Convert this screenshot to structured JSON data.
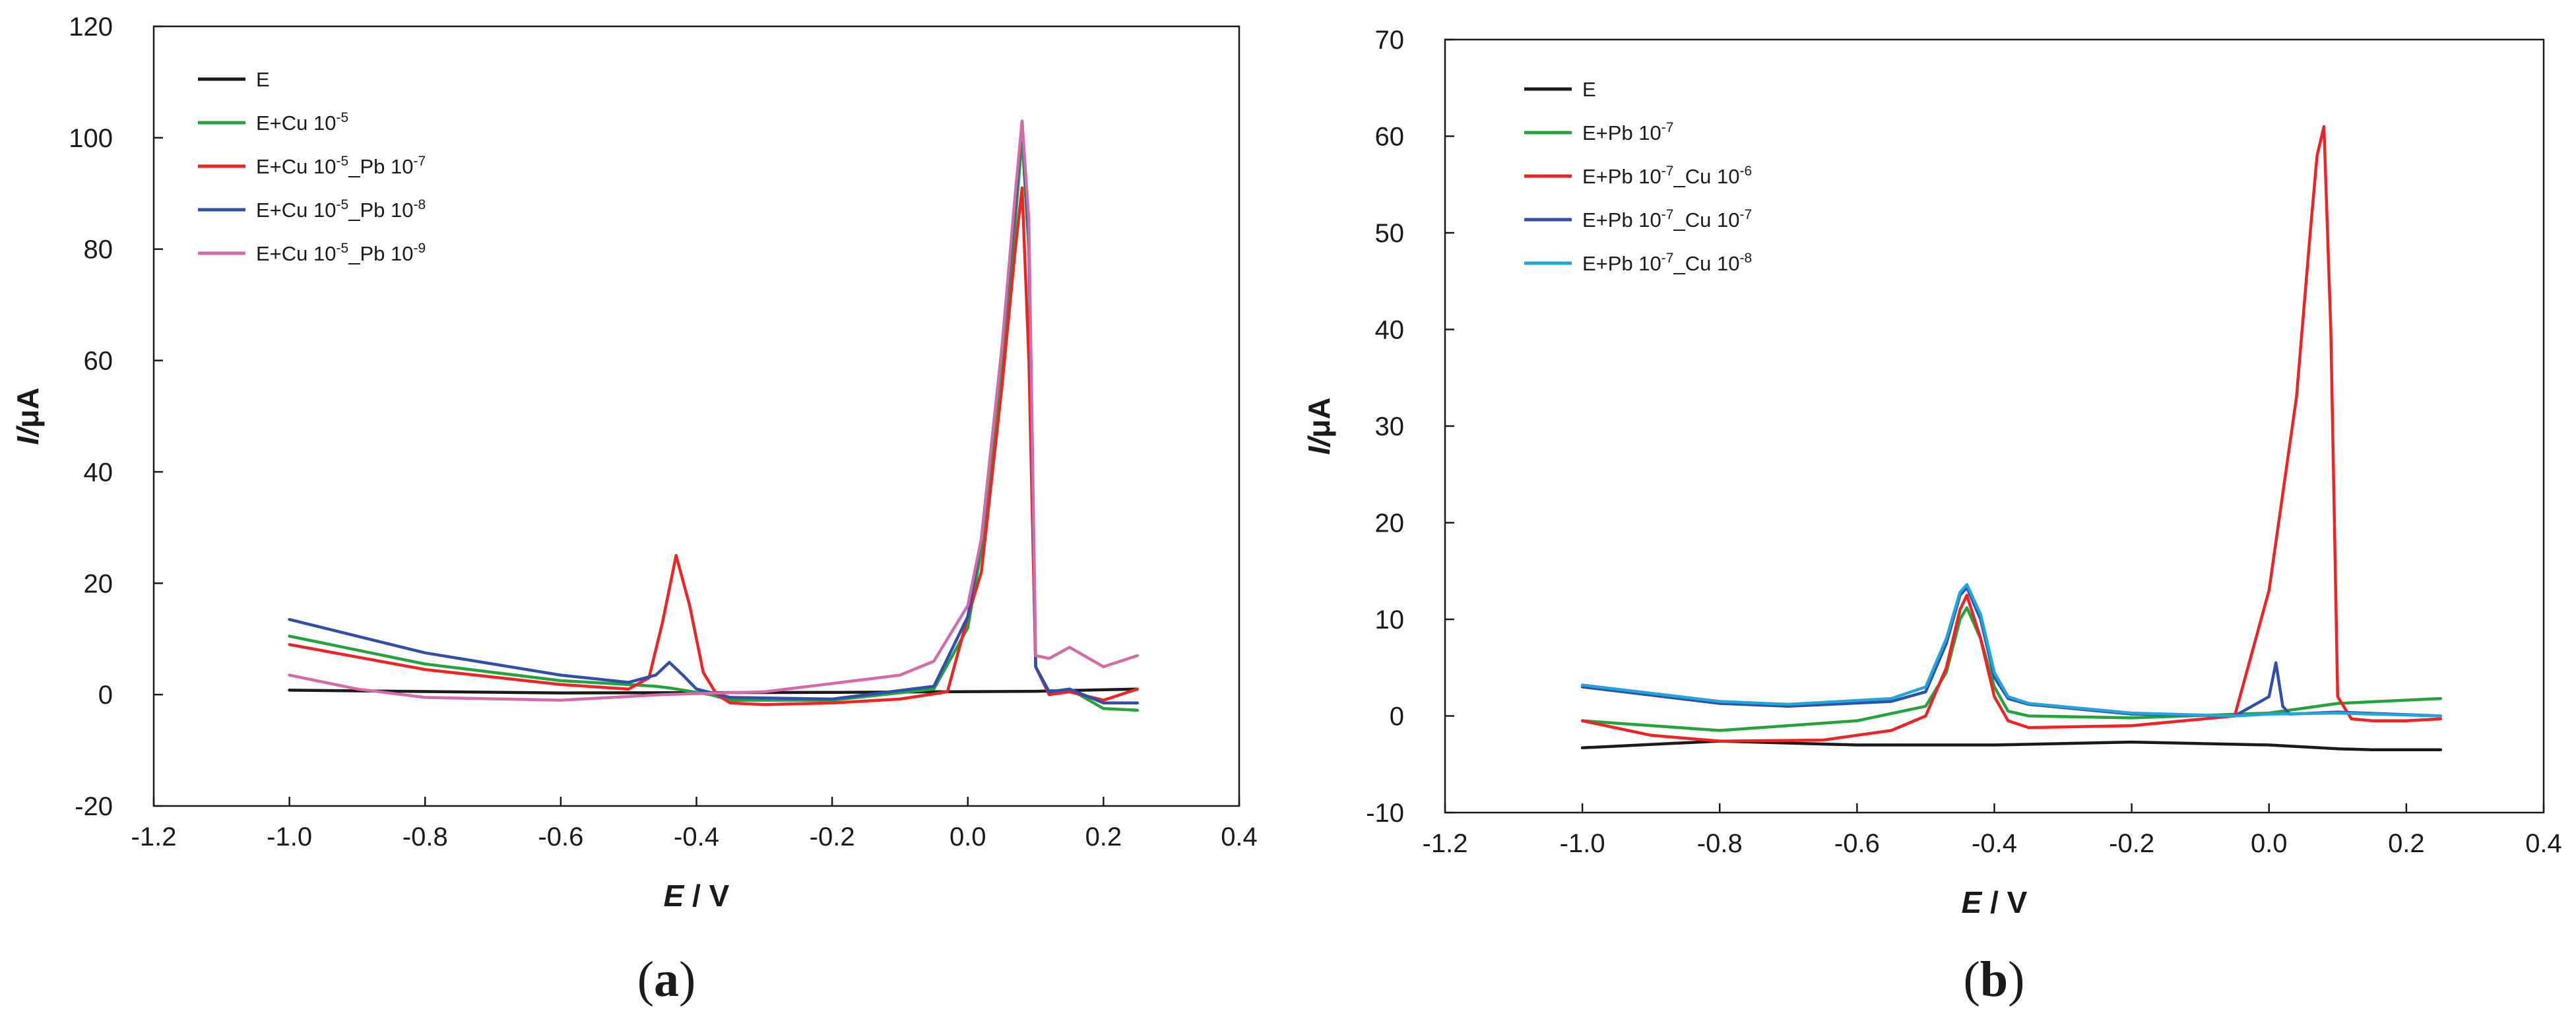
{
  "chart_data": [
    {
      "type": "line",
      "panel": "a",
      "caption_label": "a",
      "xlabel": "E / V",
      "ylabel": "I/μA",
      "xlim": [
        -1.2,
        0.4
      ],
      "ylim": [
        -20,
        120
      ],
      "xticks": [
        -1.2,
        -1.0,
        -0.8,
        -0.6,
        -0.4,
        -0.2,
        0.0,
        0.2,
        0.4
      ],
      "yticks": [
        -20,
        0,
        20,
        40,
        60,
        80,
        100,
        120
      ],
      "xtick_labels": [
        "-1.2",
        "-1.0",
        "-0.8",
        "-0.6",
        "-0.4",
        "-0.2",
        "0.0",
        "0.2",
        "0.4"
      ],
      "ytick_labels": [
        "-20",
        "0",
        "20",
        "40",
        "60",
        "80",
        "100",
        "120"
      ],
      "legend_position": "top-left",
      "series": [
        {
          "name": "E",
          "legend": {
            "base": "E",
            "parts": []
          },
          "color": "#1a1a1a",
          "x": [
            -1.0,
            -0.6,
            -0.2,
            0.1,
            0.25
          ],
          "y": [
            0.8,
            0.3,
            0.4,
            0.6,
            1.0
          ]
        },
        {
          "name": "E+Cu 10-5",
          "legend": {
            "base": "E+Cu 10",
            "parts": [
              {
                "sup": "-5"
              }
            ]
          },
          "color": "#23a33a",
          "x": [
            -1.0,
            -0.8,
            -0.6,
            -0.5,
            -0.46,
            -0.44,
            -0.42,
            -0.38,
            -0.35,
            -0.2,
            -0.05,
            0.0,
            0.02,
            0.05,
            0.07,
            0.08,
            0.09,
            0.1,
            0.12,
            0.15,
            0.2,
            0.25
          ],
          "y": [
            10.5,
            5.5,
            2.5,
            1.8,
            1.5,
            1.2,
            0.8,
            0.0,
            -1.0,
            -1.0,
            1.0,
            12.0,
            26.0,
            60.0,
            85.0,
            100.0,
            80.0,
            5.0,
            0.0,
            1.0,
            -2.5,
            -2.8
          ]
        },
        {
          "name": "E+Cu 10-5_Pb 10-7",
          "legend": {
            "base": "E+Cu 10",
            "parts": [
              {
                "sup": "-5"
              },
              {
                "text": "_Pb 10"
              },
              {
                "sup": "-7"
              }
            ]
          },
          "color": "#ee2424",
          "x": [
            -1.0,
            -0.8,
            -0.6,
            -0.5,
            -0.47,
            -0.45,
            -0.43,
            -0.41,
            -0.39,
            -0.37,
            -0.35,
            -0.3,
            -0.2,
            -0.1,
            -0.03,
            0.0,
            0.02,
            0.05,
            0.07,
            0.08,
            0.09,
            0.1,
            0.12,
            0.15,
            0.2,
            0.25
          ],
          "y": [
            9.0,
            4.5,
            1.8,
            1.0,
            3.0,
            13.0,
            25.0,
            16.0,
            4.0,
            0.0,
            -1.5,
            -1.8,
            -1.5,
            -0.8,
            0.5,
            14.0,
            22.0,
            55.0,
            80.0,
            91.0,
            60.0,
            5.0,
            0.0,
            0.5,
            -1.0,
            1.0
          ]
        },
        {
          "name": "E+Cu 10-5_Pb 10-8",
          "legend": {
            "base": "E+Cu 10",
            "parts": [
              {
                "sup": "-5"
              },
              {
                "text": "_Pb 10"
              },
              {
                "sup": "-8"
              }
            ]
          },
          "color": "#2f4fa8",
          "x": [
            -1.0,
            -0.8,
            -0.6,
            -0.5,
            -0.46,
            -0.44,
            -0.42,
            -0.4,
            -0.35,
            -0.2,
            -0.05,
            0.0,
            0.02,
            0.05,
            0.07,
            0.08,
            0.09,
            0.1,
            0.12,
            0.15,
            0.2,
            0.25
          ],
          "y": [
            13.5,
            7.5,
            3.5,
            2.2,
            3.5,
            5.8,
            3.5,
            1.0,
            -0.5,
            -0.8,
            1.5,
            14.0,
            28.0,
            62.0,
            88.0,
            103.0,
            82.0,
            5.0,
            0.5,
            1.0,
            -1.5,
            -1.5
          ]
        },
        {
          "name": "E+Cu 10-5_Pb 10-9",
          "legend": {
            "base": "E+Cu 10",
            "parts": [
              {
                "sup": "-5"
              },
              {
                "text": "_Pb 10"
              },
              {
                "sup": "-9"
              }
            ]
          },
          "color": "#d56aa8",
          "x": [
            -1.0,
            -0.9,
            -0.8,
            -0.6,
            -0.45,
            -0.3,
            -0.2,
            -0.1,
            -0.05,
            0.0,
            0.02,
            0.05,
            0.07,
            0.08,
            0.09,
            0.1,
            0.12,
            0.15,
            0.2,
            0.25
          ],
          "y": [
            3.5,
            1.0,
            -0.5,
            -1.0,
            0.0,
            0.5,
            2.0,
            3.5,
            6.0,
            16.0,
            28.0,
            62.0,
            90.0,
            103.0,
            85.0,
            7.0,
            6.5,
            8.5,
            5.0,
            7.0
          ]
        }
      ]
    },
    {
      "type": "line",
      "panel": "b",
      "caption_label": "b",
      "xlabel": "E / V",
      "ylabel": "I/μA",
      "xlim": [
        -1.2,
        0.4
      ],
      "ylim": [
        -10,
        70
      ],
      "xticks": [
        -1.2,
        -1.0,
        -0.8,
        -0.6,
        -0.4,
        -0.2,
        0.0,
        0.2,
        0.4
      ],
      "yticks": [
        -10,
        0,
        10,
        20,
        30,
        40,
        50,
        60,
        70
      ],
      "xtick_labels": [
        "-1.2",
        "-1.0",
        "-0.8",
        "-0.6",
        "-0.4",
        "-0.2",
        "0.0",
        "0.2",
        "0.4"
      ],
      "ytick_labels": [
        "-10",
        "0",
        "10",
        "20",
        "30",
        "40",
        "50",
        "60",
        "70"
      ],
      "legend_position": "top-left",
      "series": [
        {
          "name": "E",
          "legend": {
            "base": "E",
            "parts": []
          },
          "color": "#1a1a1a",
          "x": [
            -1.0,
            -0.8,
            -0.6,
            -0.4,
            -0.2,
            0.0,
            0.1,
            0.15,
            0.25
          ],
          "y": [
            -3.3,
            -2.6,
            -3.0,
            -3.0,
            -2.7,
            -3.0,
            -3.4,
            -3.5,
            -3.5
          ]
        },
        {
          "name": "E+Pb 10-7",
          "legend": {
            "base": "E+Pb 10",
            "parts": [
              {
                "sup": "-7"
              }
            ]
          },
          "color": "#23a33a",
          "x": [
            -1.0,
            -0.8,
            -0.6,
            -0.5,
            -0.47,
            -0.45,
            -0.44,
            -0.42,
            -0.4,
            -0.38,
            -0.35,
            -0.2,
            0.0,
            0.1,
            0.25
          ],
          "y": [
            -0.5,
            -1.5,
            -0.5,
            1.0,
            4.5,
            10.0,
            11.2,
            8.0,
            3.0,
            0.5,
            0.0,
            -0.2,
            0.3,
            1.3,
            1.8
          ]
        },
        {
          "name": "E+Pb 10-7_Cu 10-6",
          "legend": {
            "base": "E+Pb 10",
            "parts": [
              {
                "sup": "-7"
              },
              {
                "text": "_Cu 10"
              },
              {
                "sup": "-6"
              }
            ]
          },
          "color": "#ee2424",
          "x": [
            -1.0,
            -0.9,
            -0.8,
            -0.65,
            -0.55,
            -0.5,
            -0.47,
            -0.45,
            -0.44,
            -0.42,
            -0.4,
            -0.38,
            -0.35,
            -0.2,
            -0.05,
            0.0,
            0.02,
            0.04,
            0.06,
            0.07,
            0.08,
            0.09,
            0.1,
            0.12,
            0.15,
            0.2,
            0.25
          ],
          "y": [
            -0.5,
            -2.0,
            -2.6,
            -2.5,
            -1.5,
            0.0,
            5.0,
            11.0,
            12.5,
            8.0,
            2.0,
            -0.5,
            -1.2,
            -1.0,
            0.0,
            13.0,
            23.0,
            33.0,
            50.0,
            58.0,
            61.0,
            40.0,
            2.0,
            -0.3,
            -0.5,
            -0.5,
            -0.3
          ]
        },
        {
          "name": "E+Pb 10-7_Cu 10-7",
          "legend": {
            "base": "E+Pb 10",
            "parts": [
              {
                "sup": "-7"
              },
              {
                "text": "_Cu 10"
              },
              {
                "sup": "-7"
              }
            ]
          },
          "color": "#2f4fa8",
          "x": [
            -1.0,
            -0.8,
            -0.7,
            -0.55,
            -0.5,
            -0.47,
            -0.45,
            -0.44,
            -0.42,
            -0.4,
            -0.38,
            -0.35,
            -0.2,
            -0.05,
            0.0,
            0.01,
            0.02,
            0.03,
            0.1,
            0.25
          ],
          "y": [
            3.0,
            1.3,
            1.0,
            1.5,
            2.5,
            7.5,
            12.5,
            13.3,
            10.0,
            4.0,
            1.8,
            1.2,
            0.2,
            0.0,
            2.0,
            5.5,
            1.0,
            0.2,
            0.4,
            0.0
          ]
        },
        {
          "name": "E+Pb 10-7_Cu 10-8",
          "legend": {
            "base": "E+Pb 10",
            "parts": [
              {
                "sup": "-7"
              },
              {
                "text": "_Cu 10"
              },
              {
                "sup": "-8"
              }
            ]
          },
          "color": "#22a4dc",
          "x": [
            -1.0,
            -0.8,
            -0.7,
            -0.55,
            -0.5,
            -0.47,
            -0.45,
            -0.44,
            -0.42,
            -0.4,
            -0.38,
            -0.35,
            -0.2,
            -0.05,
            0.0,
            0.1,
            0.25
          ],
          "y": [
            3.2,
            1.5,
            1.2,
            1.8,
            3.0,
            8.0,
            12.8,
            13.6,
            10.5,
            4.5,
            2.0,
            1.3,
            0.3,
            0.0,
            0.2,
            0.3,
            0.0
          ]
        }
      ]
    }
  ]
}
